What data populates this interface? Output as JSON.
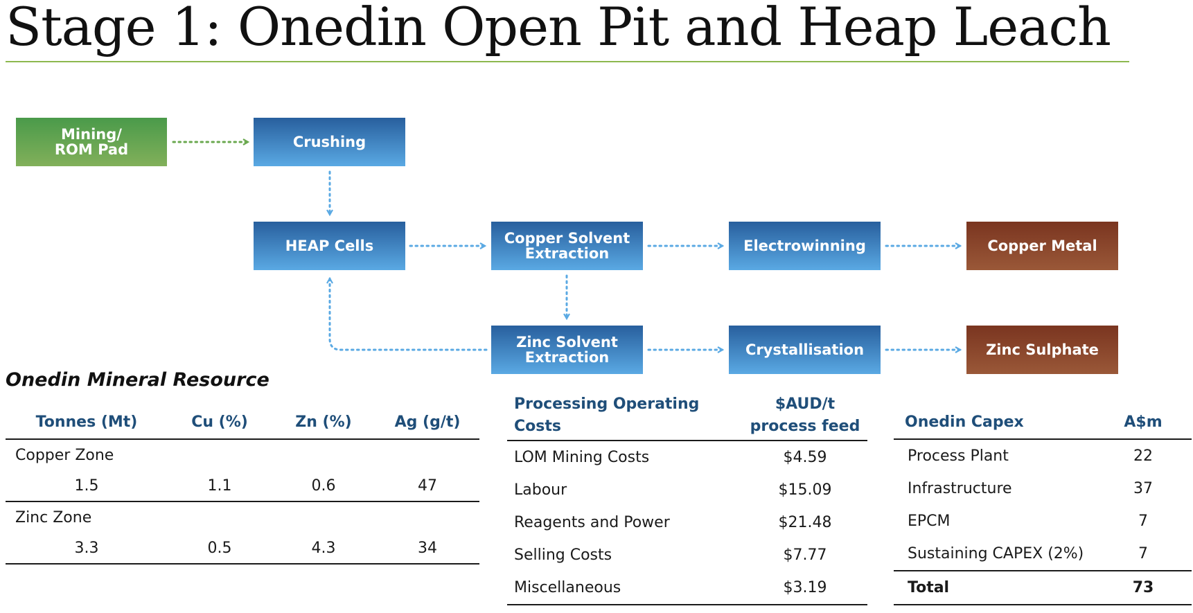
{
  "page": {
    "title": "Stage 1: Onedin Open Pit and Heap Leach"
  },
  "flowchart": {
    "mining": "Mining/\nROM Pad",
    "crushing": "Crushing",
    "heap_cells": "HEAP Cells",
    "copper_sx": "Copper Solvent\nExtraction",
    "electrowinning": "Electrowinning",
    "copper_metal": "Copper Metal",
    "zinc_sx": "Zinc Solvent\nExtraction",
    "crystallisation": "Crystallisation",
    "zinc_sulphate": "Zinc Sulphate",
    "colors": {
      "mining": "#6aa84f",
      "process": "#3f84c4",
      "product": "#8b4a2e",
      "arrow_green": "#6aa84f",
      "arrow_blue": "#5aa9e3"
    }
  },
  "mineral_resource": {
    "title": "Onedin Mineral Resource",
    "headers": [
      "Tonnes (Mt)",
      "Cu (%)",
      "Zn (%)",
      "Ag (g/t)"
    ],
    "zones": [
      {
        "name": "Copper Zone",
        "values": [
          "1.5",
          "1.1",
          "0.6",
          "47"
        ]
      },
      {
        "name": "Zinc Zone",
        "values": [
          "3.3",
          "0.5",
          "4.3",
          "34"
        ]
      }
    ]
  },
  "operating_costs": {
    "header_label": "Processing Operating Costs",
    "header_unit": "$AUD/t\nprocess feed",
    "rows": [
      {
        "label": "LOM Mining Costs",
        "value": "$4.59"
      },
      {
        "label": "Labour",
        "value": "$15.09"
      },
      {
        "label": "Reagents and Power",
        "value": "$21.48"
      },
      {
        "label": "Selling Costs",
        "value": "$7.77"
      },
      {
        "label": "Miscellaneous",
        "value": "$3.19"
      }
    ]
  },
  "capex": {
    "header_label": "Onedin Capex",
    "header_unit": "A$m",
    "rows": [
      {
        "label": "Process Plant",
        "value": "22"
      },
      {
        "label": "Infrastructure",
        "value": "37"
      },
      {
        "label": "EPCM",
        "value": "7"
      },
      {
        "label": "Sustaining CAPEX (2%)",
        "value": "7"
      }
    ],
    "total": {
      "label": "Total",
      "value": "73"
    }
  }
}
